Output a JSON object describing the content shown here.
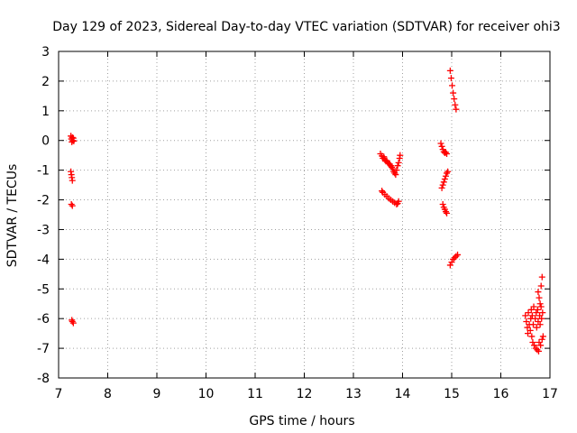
{
  "chart_data": {
    "type": "scatter",
    "title": "Day 129 of 2023, Sidereal Day-to-day VTEC variation (SDTVAR) for receiver ohi3",
    "xlabel": "GPS time / hours",
    "ylabel": "SDTVAR / TECUs",
    "xlim": [
      7,
      17
    ],
    "ylim": [
      -8,
      3
    ],
    "xticks": [
      "7",
      "8",
      "9",
      "10",
      "11",
      "12",
      "13",
      "14",
      "15",
      "16",
      "17"
    ],
    "yticks": [
      "3",
      "2",
      "1",
      "0",
      "-1",
      "-2",
      "-3",
      "-4",
      "-5",
      "-6",
      "-7",
      "-8"
    ],
    "grid": true,
    "marker": "+",
    "color": "#ff0000",
    "series": [
      {
        "name": "SDTVAR",
        "points": [
          [
            7.25,
            0.15
          ],
          [
            7.26,
            0.05
          ],
          [
            7.27,
            -0.05
          ],
          [
            7.28,
            0.1
          ],
          [
            7.29,
            0.0
          ],
          [
            7.3,
            0.08
          ],
          [
            7.31,
            -0.02
          ],
          [
            7.25,
            -1.05
          ],
          [
            7.26,
            -1.15
          ],
          [
            7.27,
            -1.25
          ],
          [
            7.28,
            -1.35
          ],
          [
            7.26,
            -2.15
          ],
          [
            7.28,
            -2.2
          ],
          [
            7.27,
            -6.05
          ],
          [
            7.28,
            -6.1
          ],
          [
            7.3,
            -6.15
          ],
          [
            13.55,
            -0.45
          ],
          [
            13.58,
            -0.52
          ],
          [
            13.6,
            -0.6
          ],
          [
            13.62,
            -0.55
          ],
          [
            13.64,
            -0.65
          ],
          [
            13.66,
            -0.7
          ],
          [
            13.68,
            -0.68
          ],
          [
            13.7,
            -0.75
          ],
          [
            13.72,
            -0.78
          ],
          [
            13.74,
            -0.8
          ],
          [
            13.76,
            -0.85
          ],
          [
            13.78,
            -0.9
          ],
          [
            13.8,
            -0.95
          ],
          [
            13.82,
            -1.05
          ],
          [
            13.84,
            -1.1
          ],
          [
            13.86,
            -1.15
          ],
          [
            13.88,
            -1.0
          ],
          [
            13.9,
            -0.85
          ],
          [
            13.92,
            -0.75
          ],
          [
            13.94,
            -0.6
          ],
          [
            13.95,
            -0.5
          ],
          [
            13.58,
            -1.7
          ],
          [
            13.6,
            -1.75
          ],
          [
            13.64,
            -1.82
          ],
          [
            13.68,
            -1.88
          ],
          [
            13.72,
            -1.95
          ],
          [
            13.76,
            -2.0
          ],
          [
            13.8,
            -2.05
          ],
          [
            13.84,
            -2.1
          ],
          [
            13.88,
            -2.15
          ],
          [
            13.9,
            -2.12
          ],
          [
            13.92,
            -2.05
          ],
          [
            14.78,
            -0.1
          ],
          [
            14.8,
            -0.2
          ],
          [
            14.82,
            -0.3
          ],
          [
            14.84,
            -0.38
          ],
          [
            14.86,
            -0.42
          ],
          [
            14.88,
            -0.4
          ],
          [
            14.9,
            -0.45
          ],
          [
            14.8,
            -1.6
          ],
          [
            14.82,
            -1.5
          ],
          [
            14.84,
            -1.4
          ],
          [
            14.86,
            -1.3
          ],
          [
            14.88,
            -1.2
          ],
          [
            14.9,
            -1.1
          ],
          [
            14.92,
            -1.05
          ],
          [
            14.82,
            -2.15
          ],
          [
            14.84,
            -2.25
          ],
          [
            14.86,
            -2.32
          ],
          [
            14.88,
            -2.4
          ],
          [
            14.9,
            -2.45
          ],
          [
            14.97,
            2.35
          ],
          [
            14.99,
            2.1
          ],
          [
            15.01,
            1.85
          ],
          [
            15.03,
            1.6
          ],
          [
            15.05,
            1.4
          ],
          [
            15.07,
            1.2
          ],
          [
            15.09,
            1.05
          ],
          [
            14.97,
            -4.2
          ],
          [
            15.0,
            -4.1
          ],
          [
            15.03,
            -4.0
          ],
          [
            15.06,
            -3.95
          ],
          [
            15.09,
            -3.9
          ],
          [
            15.12,
            -3.85
          ],
          [
            16.5,
            -5.9
          ],
          [
            16.52,
            -6.1
          ],
          [
            16.54,
            -6.3
          ],
          [
            16.55,
            -6.5
          ],
          [
            16.56,
            -5.8
          ],
          [
            16.58,
            -6.2
          ],
          [
            16.6,
            -6.4
          ],
          [
            16.61,
            -6.0
          ],
          [
            16.62,
            -5.7
          ],
          [
            16.63,
            -6.6
          ],
          [
            16.64,
            -5.9
          ],
          [
            16.65,
            -6.8
          ],
          [
            16.66,
            -6.2
          ],
          [
            16.67,
            -5.6
          ],
          [
            16.68,
            -6.9
          ],
          [
            16.7,
            -6.0
          ],
          [
            16.71,
            -7.0
          ],
          [
            16.72,
            -5.8
          ],
          [
            16.73,
            -6.3
          ],
          [
            16.74,
            -7.05
          ],
          [
            16.75,
            -5.7
          ],
          [
            16.76,
            -6.1
          ],
          [
            16.77,
            -7.1
          ],
          [
            16.78,
            -6.8
          ],
          [
            16.79,
            -5.9
          ],
          [
            16.8,
            -6.2
          ],
          [
            16.81,
            -6.9
          ],
          [
            16.82,
            -5.6
          ],
          [
            16.83,
            -6.0
          ],
          [
            16.84,
            -6.7
          ],
          [
            16.85,
            -5.8
          ],
          [
            16.86,
            -6.6
          ],
          [
            16.76,
            -5.1
          ],
          [
            16.78,
            -5.3
          ],
          [
            16.8,
            -5.5
          ],
          [
            16.82,
            -4.9
          ],
          [
            16.84,
            -4.6
          ]
        ]
      }
    ]
  }
}
